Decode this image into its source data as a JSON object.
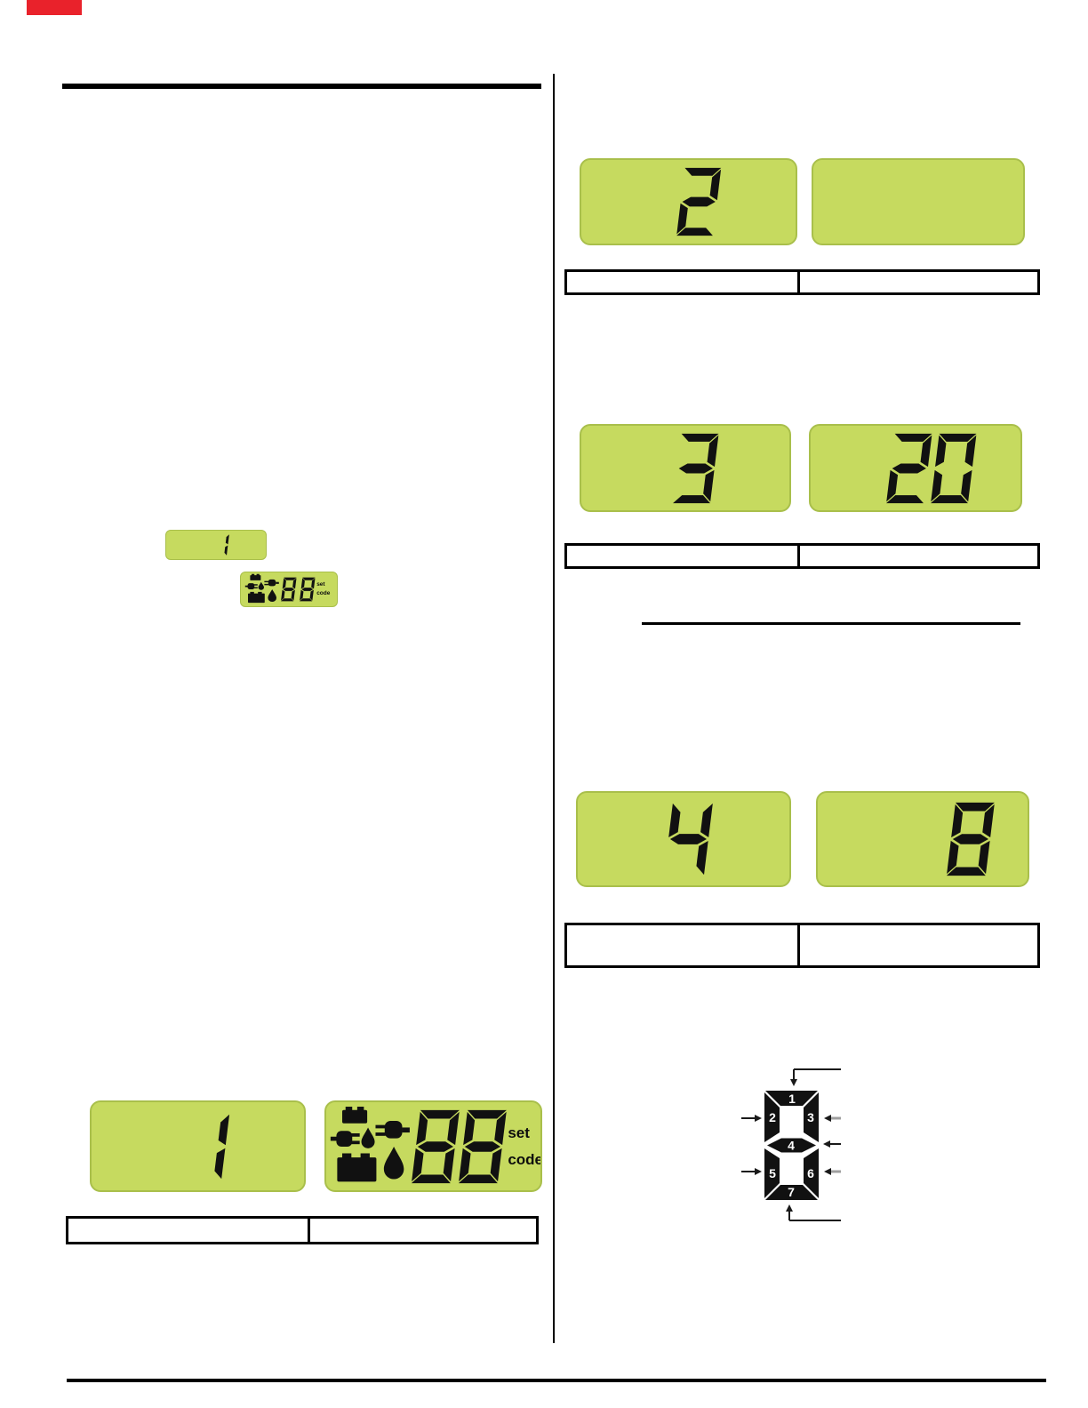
{
  "palette": {
    "lcd_green": "#c6da5f",
    "lcd_border_green": "#a9bf4b",
    "segment_black": "#111111",
    "marker_red": "#e9222b",
    "arrow_gray": "#9f9f9f"
  },
  "left_column": {
    "mini_step_display": {
      "digits": "1"
    },
    "mini_code_display": {
      "digits": "88",
      "set_label": "set",
      "code_label": "code"
    },
    "example_step_display": {
      "digits": "1"
    },
    "example_code_display": {
      "digits": "88",
      "set_label": "set",
      "code_label": "code"
    },
    "caption_table": {
      "cells": [
        "",
        ""
      ]
    }
  },
  "right_column": {
    "steps": [
      {
        "left_digits": "2",
        "right_digits": "",
        "table_cells": [
          "",
          ""
        ]
      },
      {
        "left_digits": "3",
        "right_digits": "20",
        "table_cells": [
          "",
          ""
        ]
      },
      {
        "left_digits": "4",
        "right_digits": "8",
        "table_cells": [
          "",
          ""
        ]
      }
    ]
  },
  "segment_diagram": {
    "labels": [
      "1",
      "2",
      "3",
      "4",
      "5",
      "6",
      "7"
    ]
  }
}
